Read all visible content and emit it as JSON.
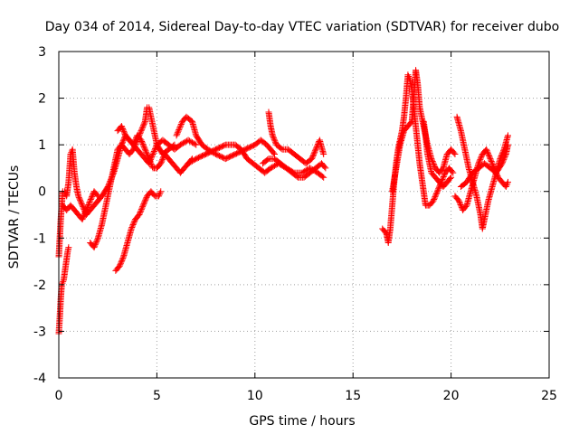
{
  "chart_data": {
    "type": "scatter",
    "title": "Day 034 of 2014, Sidereal Day-to-day VTEC variation (SDTVAR) for receiver dubo",
    "xlabel": "GPS time / hours",
    "ylabel": "SDTVAR / TECUs",
    "xlim": [
      0,
      25
    ],
    "ylim": [
      -4,
      3
    ],
    "xticks": [
      "0",
      "5",
      "10",
      "15",
      "20",
      "25"
    ],
    "yticks": [
      "-4",
      "-3",
      "-2",
      "-1",
      "0",
      "1",
      "2",
      "3"
    ],
    "grid": true,
    "marker": "+",
    "series": [
      {
        "name": "dubo",
        "color": "#ff0000",
        "tracks": [
          [
            [
              0.0,
              -3.05
            ],
            [
              0.05,
              -2.7
            ],
            [
              0.1,
              -2.3
            ],
            [
              0.15,
              -2.0
            ],
            [
              0.25,
              -1.9
            ],
            [
              0.35,
              -1.6
            ],
            [
              0.45,
              -1.3
            ],
            [
              0.5,
              -1.2
            ]
          ],
          [
            [
              0.0,
              -1.4
            ],
            [
              0.05,
              -1.0
            ],
            [
              0.1,
              -0.6
            ],
            [
              0.15,
              -0.3
            ],
            [
              0.2,
              0.0
            ],
            [
              0.3,
              0.0
            ],
            [
              0.4,
              -0.1
            ],
            [
              0.5,
              0.2
            ],
            [
              0.6,
              0.8
            ],
            [
              0.7,
              0.9
            ],
            [
              0.8,
              0.4
            ],
            [
              0.9,
              0.1
            ],
            [
              1.0,
              -0.1
            ],
            [
              1.2,
              -0.3
            ],
            [
              1.4,
              -0.5
            ],
            [
              1.6,
              -0.4
            ],
            [
              1.8,
              -0.3
            ],
            [
              2.0,
              -0.2
            ],
            [
              2.2,
              -0.1
            ],
            [
              2.5,
              0.1
            ],
            [
              2.8,
              0.4
            ],
            [
              3.0,
              0.7
            ],
            [
              3.2,
              1.0
            ],
            [
              3.4,
              1.2
            ],
            [
              3.6,
              1.1
            ],
            [
              3.8,
              1.0
            ],
            [
              4.0,
              0.9
            ],
            [
              4.2,
              0.8
            ],
            [
              4.4,
              0.7
            ],
            [
              4.6,
              0.6
            ],
            [
              4.8,
              0.8
            ],
            [
              5.0,
              1.0
            ],
            [
              5.3,
              1.1
            ],
            [
              5.6,
              1.0
            ],
            [
              5.9,
              0.9
            ],
            [
              6.2,
              1.0
            ],
            [
              6.6,
              1.1
            ],
            [
              7.0,
              1.0
            ]
          ],
          [
            [
              0.2,
              -0.3
            ],
            [
              0.4,
              -0.4
            ],
            [
              0.6,
              -0.3
            ],
            [
              0.8,
              -0.4
            ],
            [
              1.0,
              -0.5
            ],
            [
              1.2,
              -0.6
            ],
            [
              1.4,
              -0.4
            ],
            [
              1.6,
              -0.2
            ],
            [
              1.8,
              0.0
            ],
            [
              2.0,
              -0.1
            ]
          ],
          [
            [
              1.6,
              -1.1
            ],
            [
              1.8,
              -1.2
            ],
            [
              2.0,
              -1.0
            ],
            [
              2.2,
              -0.7
            ],
            [
              2.4,
              -0.3
            ],
            [
              2.6,
              0.1
            ],
            [
              2.8,
              0.5
            ],
            [
              3.0,
              0.9
            ],
            [
              3.2,
              1.0
            ],
            [
              3.4,
              0.9
            ],
            [
              3.6,
              0.8
            ],
            [
              3.8,
              0.9
            ],
            [
              4.0,
              1.1
            ],
            [
              4.2,
              1.3
            ],
            [
              4.4,
              1.5
            ],
            [
              4.5,
              1.8
            ],
            [
              4.6,
              1.8
            ],
            [
              4.8,
              1.4
            ],
            [
              5.0,
              1.0
            ],
            [
              5.3,
              0.8
            ],
            [
              5.6,
              0.9
            ],
            [
              5.9,
              1.0
            ]
          ],
          [
            [
              2.9,
              -1.7
            ],
            [
              3.1,
              -1.6
            ],
            [
              3.3,
              -1.4
            ],
            [
              3.5,
              -1.1
            ],
            [
              3.7,
              -0.8
            ],
            [
              3.9,
              -0.6
            ],
            [
              4.1,
              -0.5
            ],
            [
              4.3,
              -0.3
            ],
            [
              4.5,
              -0.1
            ],
            [
              4.7,
              0.0
            ],
            [
              4.9,
              -0.1
            ],
            [
              5.1,
              -0.1
            ],
            [
              5.2,
              0.0
            ]
          ],
          [
            [
              3.0,
              1.3
            ],
            [
              3.2,
              1.4
            ],
            [
              3.4,
              1.2
            ],
            [
              3.6,
              1.1
            ],
            [
              3.8,
              1.0
            ],
            [
              4.0,
              1.2
            ],
            [
              4.2,
              1.1
            ],
            [
              4.4,
              0.9
            ],
            [
              4.6,
              0.7
            ],
            [
              4.8,
              0.5
            ],
            [
              5.0,
              0.5
            ],
            [
              5.2,
              0.6
            ],
            [
              5.4,
              0.8
            ],
            [
              5.6,
              0.7
            ],
            [
              5.8,
              0.6
            ],
            [
              6.0,
              0.5
            ],
            [
              6.2,
              0.4
            ],
            [
              6.4,
              0.5
            ],
            [
              6.6,
              0.6
            ],
            [
              6.8,
              0.7
            ]
          ],
          [
            [
              6.0,
              1.2
            ],
            [
              6.3,
              1.5
            ],
            [
              6.5,
              1.6
            ],
            [
              6.8,
              1.5
            ],
            [
              7.0,
              1.2
            ],
            [
              7.3,
              1.0
            ],
            [
              7.6,
              0.9
            ],
            [
              8.0,
              0.8
            ],
            [
              8.5,
              0.7
            ],
            [
              9.0,
              0.8
            ],
            [
              9.5,
              0.9
            ],
            [
              10.0,
              1.0
            ],
            [
              10.3,
              1.1
            ],
            [
              10.6,
              1.0
            ],
            [
              10.8,
              0.9
            ],
            [
              11.0,
              0.8
            ]
          ],
          [
            [
              6.6,
              0.6
            ],
            [
              7.0,
              0.7
            ],
            [
              7.5,
              0.8
            ],
            [
              8.0,
              0.9
            ],
            [
              8.5,
              1.0
            ],
            [
              9.0,
              1.0
            ],
            [
              9.3,
              0.9
            ],
            [
              9.6,
              0.7
            ],
            [
              9.9,
              0.6
            ],
            [
              10.2,
              0.5
            ],
            [
              10.5,
              0.4
            ],
            [
              10.8,
              0.5
            ],
            [
              11.2,
              0.6
            ],
            [
              11.6,
              0.5
            ],
            [
              12.0,
              0.4
            ],
            [
              12.4,
              0.4
            ],
            [
              12.8,
              0.5
            ],
            [
              13.2,
              0.4
            ],
            [
              13.5,
              0.3
            ]
          ],
          [
            [
              10.7,
              1.7
            ],
            [
              10.8,
              1.4
            ],
            [
              10.9,
              1.2
            ],
            [
              11.1,
              1.0
            ],
            [
              11.4,
              0.9
            ],
            [
              11.7,
              0.9
            ],
            [
              12.0,
              0.8
            ],
            [
              12.3,
              0.7
            ],
            [
              12.6,
              0.6
            ],
            [
              12.9,
              0.7
            ],
            [
              13.1,
              0.9
            ],
            [
              13.3,
              1.1
            ],
            [
              13.5,
              0.8
            ]
          ],
          [
            [
              10.4,
              0.6
            ],
            [
              10.7,
              0.7
            ],
            [
              11.0,
              0.7
            ],
            [
              11.3,
              0.6
            ],
            [
              11.6,
              0.5
            ],
            [
              11.9,
              0.4
            ],
            [
              12.2,
              0.3
            ],
            [
              12.5,
              0.3
            ],
            [
              12.8,
              0.4
            ],
            [
              13.1,
              0.5
            ],
            [
              13.4,
              0.6
            ],
            [
              13.6,
              0.5
            ]
          ],
          [
            [
              16.5,
              -0.8
            ],
            [
              16.7,
              -0.9
            ],
            [
              16.8,
              -1.1
            ],
            [
              16.9,
              -0.8
            ],
            [
              17.0,
              -0.3
            ],
            [
              17.1,
              0.2
            ],
            [
              17.2,
              0.6
            ],
            [
              17.3,
              0.9
            ],
            [
              17.4,
              1.1
            ],
            [
              17.5,
              1.3
            ],
            [
              17.6,
              1.6
            ],
            [
              17.7,
              2.0
            ],
            [
              17.8,
              2.5
            ],
            [
              17.9,
              2.4
            ],
            [
              18.0,
              2.2
            ],
            [
              18.1,
              1.8
            ],
            [
              18.2,
              1.4
            ],
            [
              18.3,
              1.0
            ],
            [
              18.4,
              0.6
            ],
            [
              18.5,
              0.3
            ],
            [
              18.6,
              0.0
            ],
            [
              18.7,
              -0.3
            ],
            [
              18.9,
              -0.3
            ],
            [
              19.1,
              -0.2
            ],
            [
              19.3,
              0.0
            ],
            [
              19.5,
              0.2
            ],
            [
              19.7,
              0.4
            ],
            [
              19.9,
              0.5
            ],
            [
              20.1,
              0.4
            ]
          ],
          [
            [
              17.0,
              0.0
            ],
            [
              17.2,
              0.5
            ],
            [
              17.4,
              1.0
            ],
            [
              17.6,
              1.3
            ],
            [
              17.8,
              1.4
            ],
            [
              18.0,
              1.5
            ],
            [
              18.2,
              2.6
            ],
            [
              18.3,
              2.3
            ],
            [
              18.4,
              1.8
            ],
            [
              18.6,
              1.4
            ],
            [
              18.8,
              1.0
            ],
            [
              19.0,
              0.7
            ],
            [
              19.2,
              0.5
            ],
            [
              19.4,
              0.4
            ],
            [
              19.6,
              0.5
            ],
            [
              19.8,
              0.8
            ],
            [
              20.0,
              0.9
            ],
            [
              20.2,
              0.8
            ]
          ],
          [
            [
              18.6,
              1.5
            ],
            [
              18.7,
              1.2
            ],
            [
              18.8,
              0.8
            ],
            [
              19.0,
              0.4
            ],
            [
              19.2,
              0.3
            ],
            [
              19.4,
              0.2
            ],
            [
              19.6,
              0.1
            ],
            [
              19.8,
              0.2
            ],
            [
              20.0,
              0.3
            ]
          ],
          [
            [
              20.3,
              1.6
            ],
            [
              20.5,
              1.3
            ],
            [
              20.7,
              0.9
            ],
            [
              20.9,
              0.5
            ],
            [
              21.1,
              0.2
            ],
            [
              21.3,
              -0.1
            ],
            [
              21.5,
              -0.5
            ],
            [
              21.6,
              -0.8
            ],
            [
              21.7,
              -0.6
            ],
            [
              21.9,
              -0.2
            ],
            [
              22.1,
              0.1
            ],
            [
              22.3,
              0.4
            ],
            [
              22.5,
              0.7
            ],
            [
              22.7,
              0.9
            ],
            [
              22.9,
              1.2
            ]
          ],
          [
            [
              20.2,
              -0.1
            ],
            [
              20.4,
              -0.2
            ],
            [
              20.6,
              -0.4
            ],
            [
              20.8,
              -0.3
            ],
            [
              21.0,
              0.0
            ],
            [
              21.2,
              0.3
            ],
            [
              21.4,
              0.6
            ],
            [
              21.6,
              0.8
            ],
            [
              21.8,
              0.9
            ],
            [
              22.0,
              0.7
            ],
            [
              22.2,
              0.5
            ],
            [
              22.4,
              0.3
            ],
            [
              22.6,
              0.2
            ],
            [
              22.8,
              0.1
            ],
            [
              22.9,
              0.2
            ]
          ],
          [
            [
              20.5,
              0.1
            ],
            [
              20.8,
              0.2
            ],
            [
              21.1,
              0.4
            ],
            [
              21.4,
              0.5
            ],
            [
              21.7,
              0.6
            ],
            [
              22.0,
              0.5
            ],
            [
              22.3,
              0.4
            ],
            [
              22.6,
              0.6
            ],
            [
              22.8,
              0.8
            ],
            [
              22.9,
              1.0
            ]
          ]
        ]
      }
    ]
  }
}
